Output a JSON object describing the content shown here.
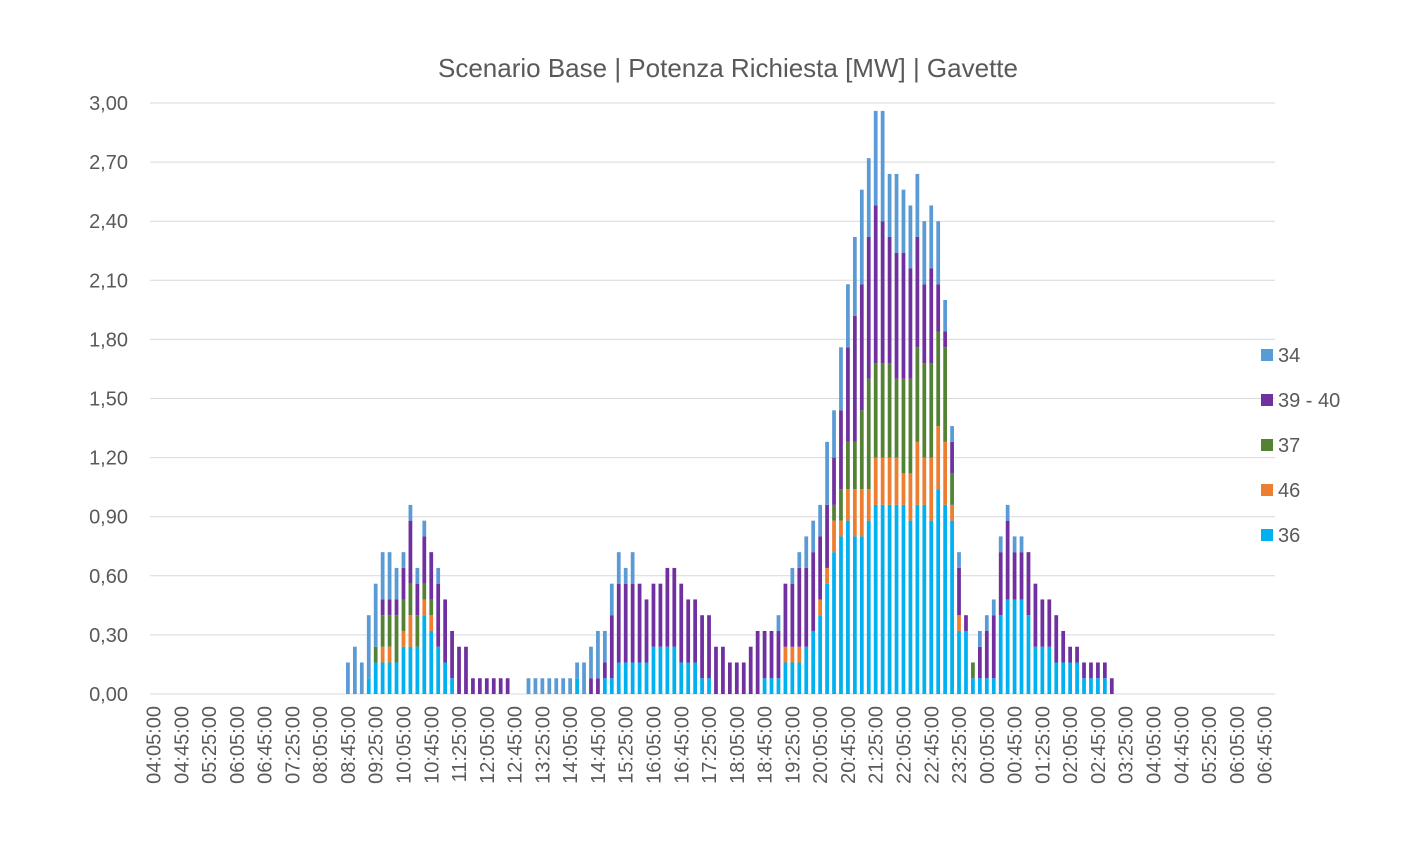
{
  "chart_data": {
    "type": "stacked_bar",
    "title": "Scenario Base | Potenza Richiesta [MW] | Gavette",
    "categories": [
      "04:05:00",
      null,
      null,
      null,
      "04:45:00",
      null,
      null,
      null,
      "05:25:00",
      null,
      null,
      null,
      "06:05:00",
      null,
      null,
      null,
      "06:45:00",
      null,
      null,
      null,
      "07:25:00",
      null,
      null,
      null,
      "08:05:00",
      null,
      null,
      null,
      "08:45:00",
      null,
      null,
      null,
      "09:25:00",
      null,
      null,
      null,
      "10:05:00",
      null,
      null,
      null,
      "10:45:00",
      null,
      null,
      null,
      "11:25:00",
      null,
      null,
      null,
      "12:05:00",
      null,
      null,
      null,
      "12:45:00",
      null,
      null,
      null,
      "13:25:00",
      null,
      null,
      null,
      "14:05:00",
      null,
      null,
      null,
      "14:45:00",
      null,
      null,
      null,
      "15:25:00",
      null,
      null,
      null,
      "16:05:00",
      null,
      null,
      null,
      "16:45:00",
      null,
      null,
      null,
      "17:25:00",
      null,
      null,
      null,
      "18:05:00",
      null,
      null,
      null,
      "18:45:00",
      null,
      null,
      null,
      "19:25:00",
      null,
      null,
      null,
      "20:05:00",
      null,
      null,
      null,
      "20:45:00",
      null,
      null,
      null,
      "21:25:00",
      null,
      null,
      null,
      "22:05:00",
      null,
      null,
      null,
      "22:45:00",
      null,
      null,
      null,
      "23:25:00",
      null,
      null,
      null,
      "00:05:00",
      null,
      null,
      null,
      "00:45:00",
      null,
      null,
      null,
      "01:25:00",
      null,
      null,
      null,
      "02:05:00",
      null,
      null,
      null,
      "02:45:00",
      null,
      null,
      null,
      "03:25:00",
      null,
      null,
      null,
      "04:05:00",
      null,
      null,
      null,
      "04:45:00",
      null,
      null,
      null,
      "05:25:00",
      null,
      null,
      null,
      "06:05:00",
      null,
      null,
      null,
      "06:45:00",
      null
    ],
    "series": [
      {
        "name": "36",
        "color": "#00b0f0",
        "values": [
          0,
          0,
          0,
          0,
          0,
          0,
          0,
          0,
          0,
          0,
          0,
          0,
          0,
          0,
          0,
          0,
          0,
          0,
          0,
          0,
          0,
          0,
          0,
          0,
          0,
          0,
          0,
          0,
          0,
          0,
          0,
          0.08,
          0.16,
          0.16,
          0.16,
          0.16,
          0.24,
          0.24,
          0.24,
          0.4,
          0.32,
          0.24,
          0.16,
          0.08,
          0,
          0,
          0,
          0,
          0,
          0,
          0,
          0,
          0,
          0,
          0,
          0,
          0,
          0,
          0,
          0,
          0,
          0.08,
          0,
          0,
          0,
          0.08,
          0.08,
          0.16,
          0.16,
          0.16,
          0.16,
          0.16,
          0.24,
          0.24,
          0.24,
          0.24,
          0.16,
          0.16,
          0.16,
          0.08,
          0.08,
          0,
          0,
          0,
          0,
          0,
          0,
          0,
          0.08,
          0.08,
          0.08,
          0.16,
          0.16,
          0.16,
          0.24,
          0.32,
          0.4,
          0.56,
          0.72,
          0.8,
          0.88,
          0.8,
          0.8,
          0.88,
          0.96,
          0.96,
          0.96,
          0.96,
          0.96,
          0.88,
          0.96,
          0.96,
          0.88,
          1.04,
          0.96,
          0.88,
          0.32,
          0.32,
          0.08,
          0.08,
          0.08,
          0.08,
          0.4,
          0.48,
          0.48,
          0.48,
          0.4,
          0.24,
          0.24,
          0.24,
          0.16,
          0.16,
          0.16,
          0.16,
          0.08,
          0.08,
          0.08,
          0.08,
          0,
          0,
          0,
          0,
          0,
          0,
          0,
          0,
          0,
          0,
          0,
          0,
          0,
          0,
          0,
          0,
          0,
          0,
          0,
          0,
          0,
          0,
          0,
          0
        ]
      },
      {
        "name": "46",
        "color": "#ed7d31",
        "values": [
          0,
          0,
          0,
          0,
          0,
          0,
          0,
          0,
          0,
          0,
          0,
          0,
          0,
          0,
          0,
          0,
          0,
          0,
          0,
          0,
          0,
          0,
          0,
          0,
          0,
          0,
          0,
          0,
          0,
          0,
          0,
          0,
          0,
          0.08,
          0.08,
          0,
          0.08,
          0.16,
          0,
          0.08,
          0.08,
          0,
          0,
          0,
          0,
          0,
          0,
          0,
          0,
          0,
          0,
          0,
          0,
          0,
          0,
          0,
          0,
          0,
          0,
          0,
          0,
          0,
          0,
          0,
          0,
          0,
          0,
          0,
          0,
          0,
          0,
          0,
          0,
          0,
          0,
          0,
          0,
          0,
          0,
          0,
          0,
          0,
          0,
          0,
          0,
          0,
          0,
          0,
          0,
          0,
          0,
          0.08,
          0.08,
          0.08,
          0,
          0,
          0.08,
          0.08,
          0.16,
          0.08,
          0.16,
          0.24,
          0.24,
          0.16,
          0.24,
          0.24,
          0.24,
          0.24,
          0.16,
          0.24,
          0.32,
          0.24,
          0.32,
          0.32,
          0.32,
          0.08,
          0.08,
          0,
          0,
          0,
          0,
          0,
          0,
          0,
          0,
          0,
          0,
          0,
          0,
          0,
          0,
          0,
          0,
          0,
          0,
          0,
          0,
          0,
          0,
          0,
          0,
          0,
          0,
          0,
          0,
          0,
          0,
          0,
          0,
          0,
          0,
          0,
          0,
          0,
          0,
          0,
          0,
          0,
          0,
          0,
          0,
          0
        ]
      },
      {
        "name": "37",
        "color": "#548235",
        "values": [
          0,
          0,
          0,
          0,
          0,
          0,
          0,
          0,
          0,
          0,
          0,
          0,
          0,
          0,
          0,
          0,
          0,
          0,
          0,
          0,
          0,
          0,
          0,
          0,
          0,
          0,
          0,
          0,
          0,
          0,
          0,
          0,
          0.08,
          0.16,
          0.16,
          0.24,
          0.16,
          0.16,
          0.16,
          0.08,
          0.08,
          0,
          0,
          0,
          0,
          0,
          0,
          0,
          0,
          0,
          0,
          0,
          0,
          0,
          0,
          0,
          0,
          0,
          0,
          0,
          0,
          0,
          0,
          0,
          0,
          0,
          0,
          0,
          0,
          0,
          0,
          0,
          0,
          0,
          0,
          0,
          0,
          0,
          0,
          0,
          0,
          0,
          0,
          0,
          0,
          0,
          0,
          0,
          0,
          0,
          0,
          0,
          0,
          0,
          0,
          0,
          0,
          0,
          0.08,
          0.16,
          0.24,
          0.24,
          0.4,
          0.56,
          0.48,
          0.48,
          0.48,
          0.4,
          0.48,
          0.48,
          0.48,
          0.48,
          0.48,
          0.48,
          0.48,
          0.16,
          0,
          0,
          0.08,
          0,
          0,
          0,
          0,
          0,
          0,
          0,
          0,
          0,
          0,
          0,
          0,
          0,
          0,
          0,
          0,
          0,
          0,
          0,
          0,
          0,
          0,
          0,
          0,
          0,
          0,
          0,
          0,
          0,
          0,
          0,
          0,
          0,
          0,
          0,
          0,
          0,
          0,
          0,
          0,
          0,
          0,
          0
        ]
      },
      {
        "name": "39 - 40",
        "color": "#7030a0",
        "values": [
          0,
          0,
          0,
          0,
          0,
          0,
          0,
          0,
          0,
          0,
          0,
          0,
          0,
          0,
          0,
          0,
          0,
          0,
          0,
          0,
          0,
          0,
          0,
          0,
          0,
          0,
          0,
          0,
          0,
          0,
          0,
          0,
          0,
          0.08,
          0.08,
          0.08,
          0.16,
          0.32,
          0.16,
          0.24,
          0.24,
          0.32,
          0.32,
          0.24,
          0.24,
          0.24,
          0.08,
          0.08,
          0.08,
          0.08,
          0.08,
          0.08,
          0,
          0,
          0,
          0,
          0,
          0,
          0,
          0,
          0,
          0,
          0,
          0.08,
          0.08,
          0.08,
          0.32,
          0.4,
          0.4,
          0.4,
          0.4,
          0.32,
          0.32,
          0.32,
          0.4,
          0.4,
          0.4,
          0.32,
          0.32,
          0.32,
          0.32,
          0.24,
          0.24,
          0.16,
          0.16,
          0.16,
          0.24,
          0.32,
          0.24,
          0.24,
          0.24,
          0.32,
          0.32,
          0.4,
          0.4,
          0.4,
          0.32,
          0.32,
          0.24,
          0.4,
          0.48,
          0.64,
          0.64,
          0.72,
          0.8,
          0.72,
          0.64,
          0.64,
          0.64,
          0.56,
          0.56,
          0.4,
          0.48,
          0.24,
          0.08,
          0.16,
          0.24,
          0.08,
          0,
          0.16,
          0.24,
          0.32,
          0.32,
          0.4,
          0.24,
          0.24,
          0.32,
          0.32,
          0.24,
          0.24,
          0.24,
          0.16,
          0.08,
          0.08,
          0.08,
          0.08,
          0.08,
          0.08,
          0.08,
          0,
          0,
          0,
          0,
          0,
          0,
          0,
          0,
          0,
          0,
          0,
          0,
          0,
          0,
          0,
          0,
          0,
          0,
          0,
          0,
          0,
          0,
          0
        ]
      },
      {
        "name": "34",
        "color": "#5b9bd5",
        "values": [
          0,
          0,
          0,
          0,
          0,
          0,
          0,
          0,
          0,
          0,
          0,
          0,
          0,
          0,
          0,
          0,
          0,
          0,
          0,
          0,
          0,
          0,
          0,
          0,
          0,
          0,
          0,
          0,
          0.16,
          0.24,
          0.16,
          0.32,
          0.32,
          0.24,
          0.24,
          0.16,
          0.08,
          0.08,
          0.08,
          0.08,
          0,
          0.08,
          0,
          0,
          0,
          0,
          0,
          0,
          0,
          0,
          0,
          0,
          0,
          0,
          0.08,
          0.08,
          0.08,
          0.08,
          0.08,
          0.08,
          0.08,
          0.08,
          0.16,
          0.16,
          0.24,
          0.16,
          0.16,
          0.16,
          0.08,
          0.16,
          0,
          0,
          0,
          0,
          0,
          0,
          0,
          0,
          0,
          0,
          0,
          0,
          0,
          0,
          0,
          0,
          0,
          0,
          0,
          0,
          0.08,
          0,
          0.08,
          0.08,
          0.16,
          0.16,
          0.16,
          0.32,
          0.24,
          0.32,
          0.32,
          0.4,
          0.48,
          0.4,
          0.48,
          0.56,
          0.32,
          0.4,
          0.32,
          0.32,
          0.32,
          0.32,
          0.32,
          0.32,
          0.16,
          0.08,
          0.08,
          0,
          0,
          0.08,
          0.08,
          0.08,
          0.08,
          0.08,
          0.08,
          0.08,
          0,
          0,
          0,
          0,
          0,
          0,
          0,
          0,
          0,
          0,
          0,
          0,
          0,
          0,
          0,
          0,
          0,
          0,
          0,
          0,
          0,
          0,
          0,
          0,
          0,
          0,
          0,
          0,
          0,
          0,
          0,
          0,
          0,
          0,
          0,
          0
        ]
      }
    ],
    "ylim": [
      0,
      3
    ],
    "yticks": [
      {
        "value": 0,
        "label": "0,00"
      },
      {
        "value": 0.3,
        "label": "0,30"
      },
      {
        "value": 0.6,
        "label": "0,60"
      },
      {
        "value": 0.9,
        "label": "0,90"
      },
      {
        "value": 1.2,
        "label": "1,20"
      },
      {
        "value": 1.5,
        "label": "1,50"
      },
      {
        "value": 1.8,
        "label": "1,80"
      },
      {
        "value": 2.1,
        "label": "2,10"
      },
      {
        "value": 2.4,
        "label": "2,40"
      },
      {
        "value": 2.7,
        "label": "2,70"
      },
      {
        "value": 3,
        "label": "3,00"
      }
    ],
    "grid": true,
    "legend": "right"
  }
}
